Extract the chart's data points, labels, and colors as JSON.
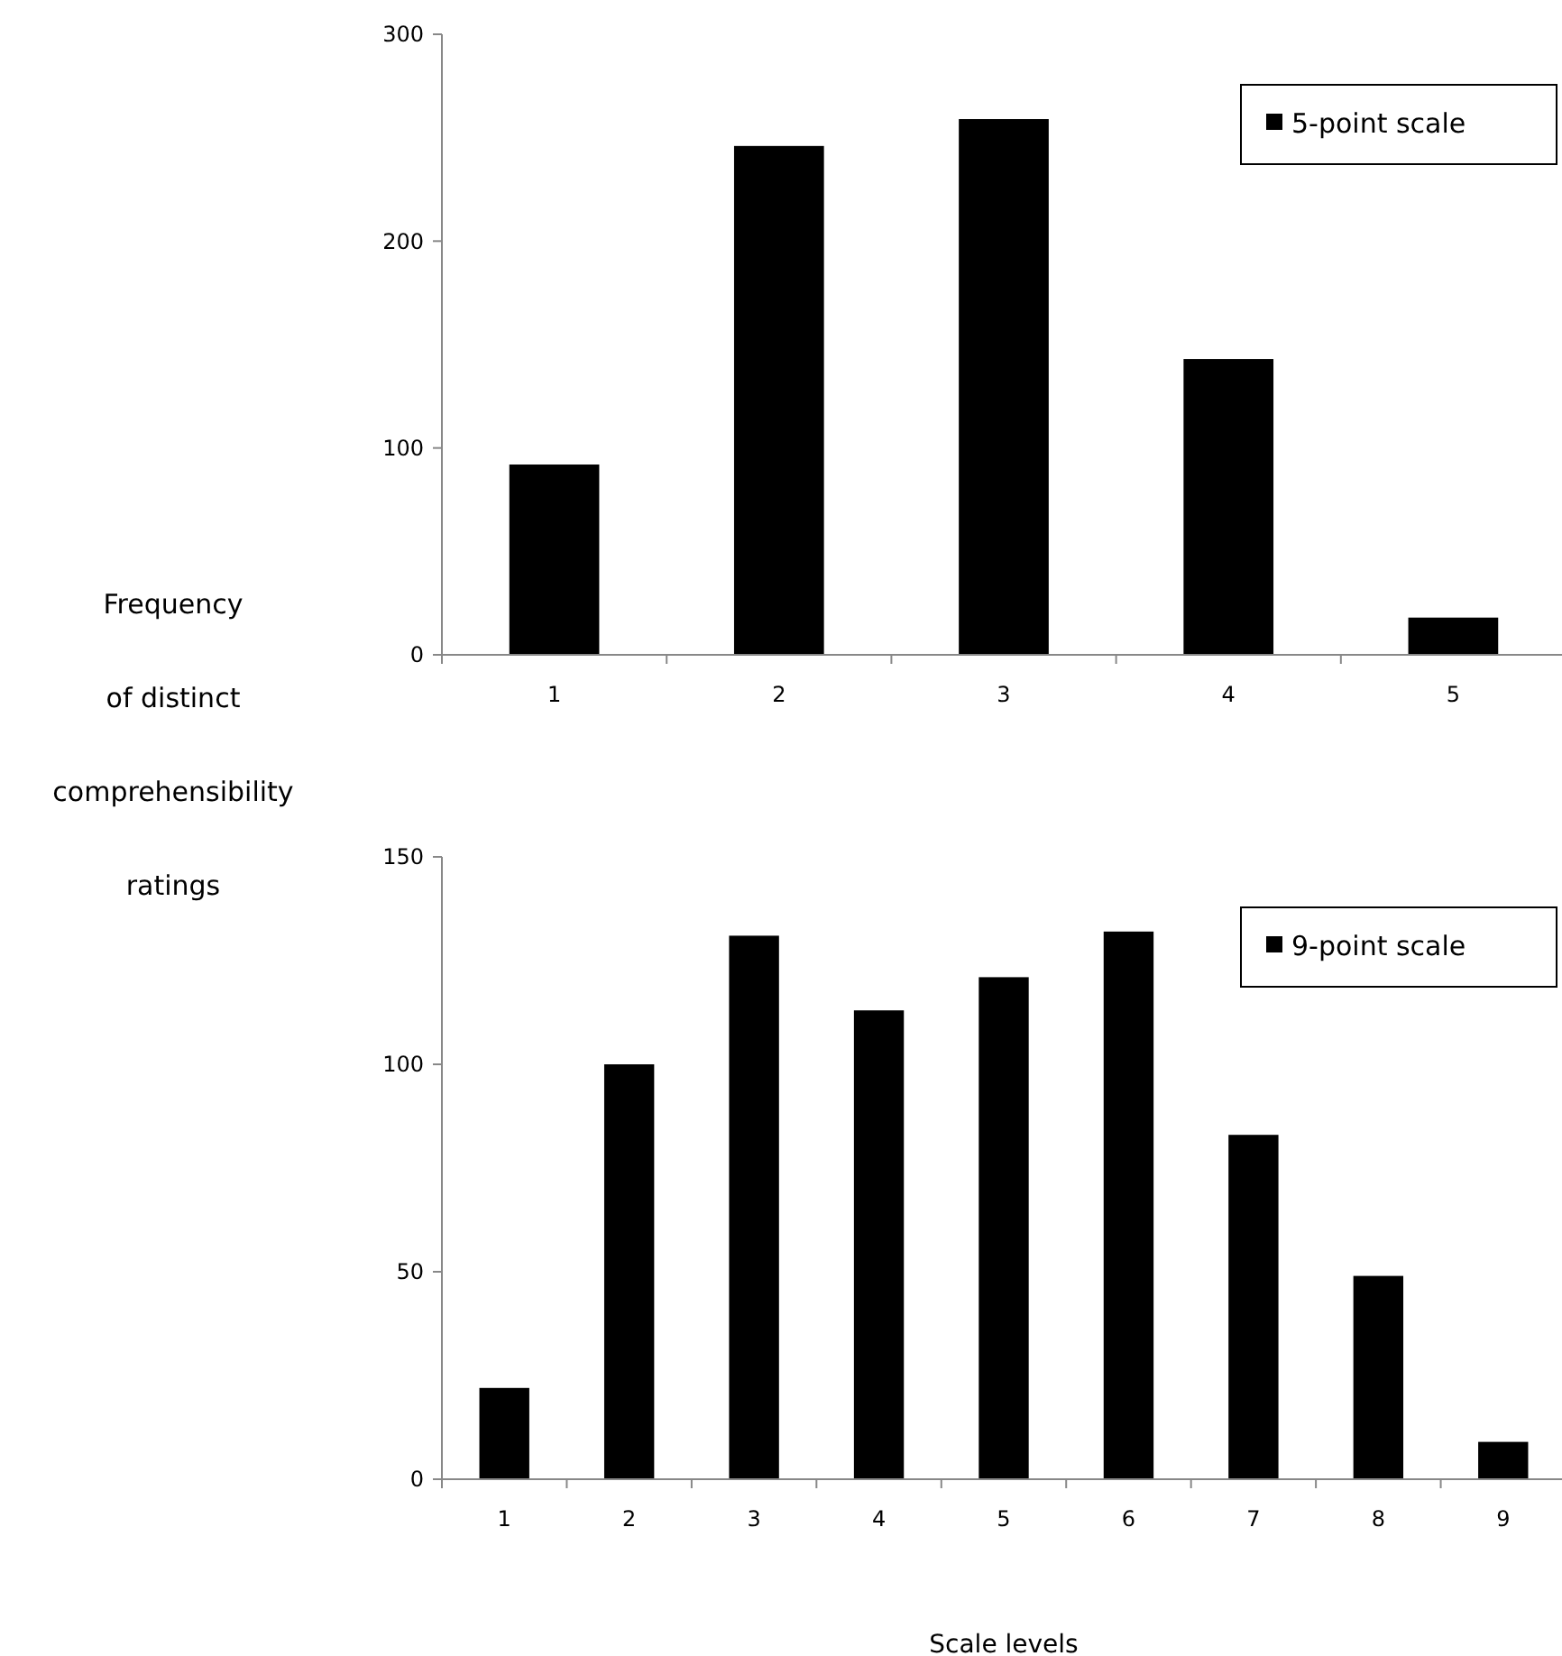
{
  "chart_data": [
    {
      "type": "bar",
      "ylabel": "Frequency\nof distinct\ncomprehensibility\nratings",
      "categories": [
        "1",
        "2",
        "3",
        "4",
        "5"
      ],
      "series": [
        {
          "name": "5-point scale",
          "color": "#000000",
          "values": [
            92,
            246,
            259,
            143,
            18
          ]
        }
      ],
      "ylim": [
        0,
        300
      ],
      "yticks": [
        0,
        100,
        200,
        300
      ],
      "legend": "top right"
    },
    {
      "type": "bar",
      "xlabel": "Scale levels",
      "categories": [
        "1",
        "2",
        "3",
        "4",
        "5",
        "6",
        "7",
        "8",
        "9"
      ],
      "series": [
        {
          "name": "9-point scale",
          "color": "#000000",
          "values": [
            22,
            100,
            131,
            113,
            121,
            132,
            83,
            49,
            9
          ]
        }
      ],
      "ylim": [
        0,
        150
      ],
      "yticks": [
        0,
        50,
        100,
        150
      ],
      "legend": "top right"
    }
  ]
}
